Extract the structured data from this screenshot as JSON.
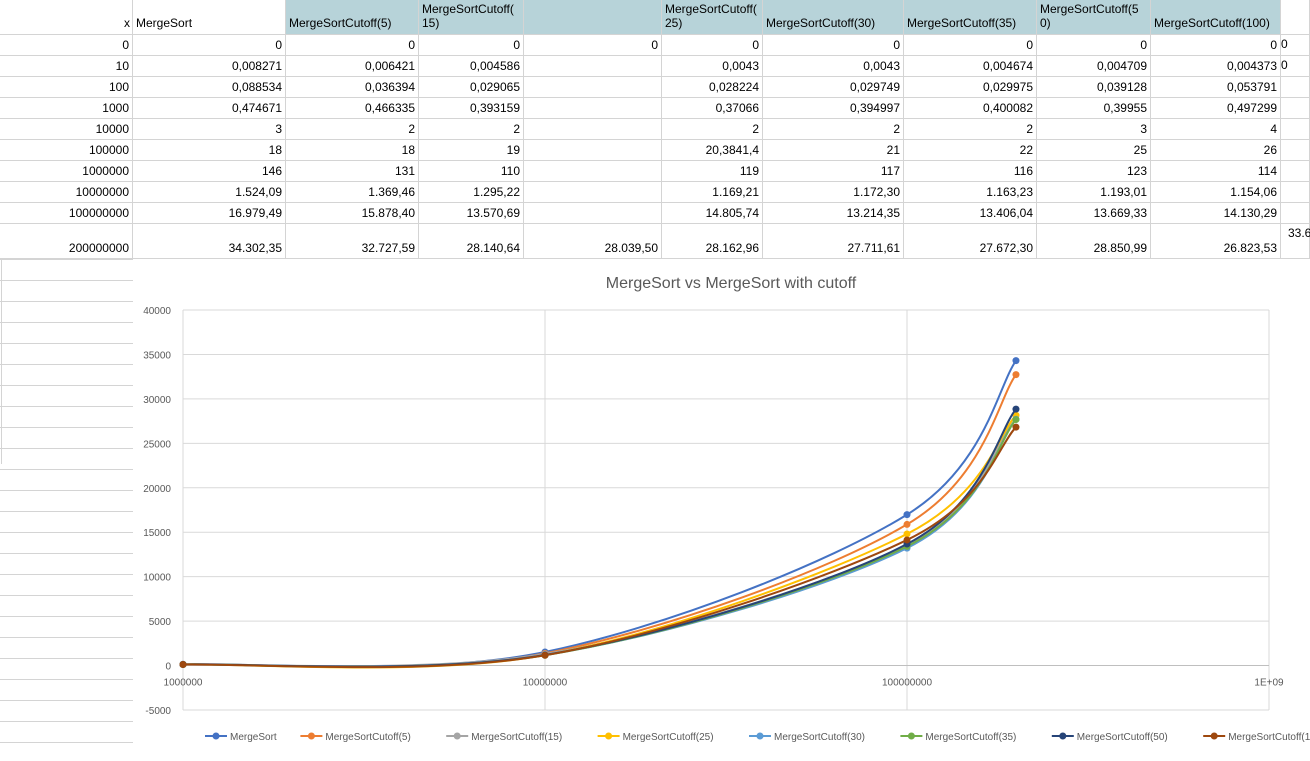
{
  "sheet": {
    "headers": [
      "x",
      "MergeSort",
      "MergeSortCutoff(5)",
      "MergeSortCutoff(\n15)",
      "",
      "MergeSortCutoff(\n25)",
      "MergeSortCutoff(30)",
      "MergeSortCutoff(35)",
      "MergeSortCutoff(5\n0)",
      "MergeSortCutoff(100)"
    ],
    "rows": [
      [
        "0",
        "0",
        "0",
        "0",
        "0",
        "0",
        "0",
        "0",
        "0",
        "0"
      ],
      [
        "10",
        "0,008271",
        "0,006421",
        "0,004586",
        "",
        "0,0043",
        "0,0043",
        "0,004674",
        "0,004709",
        "0,004373"
      ],
      [
        "100",
        "0,088534",
        "0,036394",
        "0,029065",
        "",
        "0,028224",
        "0,029749",
        "0,029975",
        "0,039128",
        "0,053791"
      ],
      [
        "1000",
        "0,474671",
        "0,466335",
        "0,393159",
        "",
        "0,37066",
        "0,394997",
        "0,400082",
        "0,39955",
        "0,497299"
      ],
      [
        "10000",
        "3",
        "2",
        "2",
        "",
        "2",
        "2",
        "2",
        "3",
        "4"
      ],
      [
        "100000",
        "18",
        "18",
        "19",
        "",
        "20,3841,4",
        "21",
        "22",
        "25",
        "26"
      ],
      [
        "1000000",
        "146",
        "131",
        "110",
        "",
        "119",
        "117",
        "116",
        "123",
        "114"
      ],
      [
        "10000000",
        "1.524,09",
        "1.369,46",
        "1.295,22",
        "",
        "1.169,21",
        "1.172,30",
        "1.163,23",
        "1.193,01",
        "1.154,06"
      ],
      [
        "100000000",
        "16.979,49",
        "15.878,40",
        "13.570,69",
        "",
        "14.805,74",
        "13.214,35",
        "13.406,04",
        "13.669,33",
        "14.130,29"
      ],
      [
        "200000000",
        "34.302,35",
        "32.727,59",
        "28.140,64",
        "28.039,50",
        "28.162,96",
        "27.711,61",
        "27.672,30",
        "28.850,99",
        "26.823,53"
      ]
    ],
    "overflow_texts": [
      "0",
      "0",
      "33.6"
    ]
  },
  "chart_data": {
    "type": "line",
    "title": "MergeSort vs MergeSort with cutoff",
    "xscale": "log",
    "x_ticks": [
      "1000000",
      "10000000",
      "100000000",
      "1E+09"
    ],
    "y_ticks": [
      "40000",
      "35000",
      "30000",
      "25000",
      "20000",
      "15000",
      "10000",
      "5000",
      "0",
      "-5000"
    ],
    "ylim": [
      -5000,
      40000
    ],
    "xlim": [
      1000000,
      1000000000
    ],
    "grid": true,
    "legend_position": "bottom",
    "x": [
      1000000,
      10000000,
      100000000,
      200000000
    ],
    "series": [
      {
        "name": "MergeSort",
        "color": "#4472c4",
        "values": [
          146,
          1524.09,
          16979.49,
          34302.35
        ]
      },
      {
        "name": "MergeSortCutoff(5)",
        "color": "#ed7d31",
        "values": [
          131,
          1369.46,
          15878.4,
          32727.59
        ]
      },
      {
        "name": "MergeSortCutoff(15)",
        "color": "#a5a5a5",
        "values": [
          110,
          1295.22,
          13570.69,
          28140.64
        ]
      },
      {
        "name": "MergeSortCutoff(25)",
        "color": "#ffc000",
        "values": [
          119,
          1169.21,
          14805.74,
          28162.96
        ]
      },
      {
        "name": "MergeSortCutoff(30)",
        "color": "#5b9bd5",
        "values": [
          117,
          1172.3,
          13214.35,
          27711.61
        ]
      },
      {
        "name": "MergeSortCutoff(35)",
        "color": "#70ad47",
        "values": [
          116,
          1163.23,
          13406.04,
          27672.3
        ]
      },
      {
        "name": "MergeSortCutoff(50)",
        "color": "#264478",
        "values": [
          123,
          1193.01,
          13669.33,
          28850.99
        ]
      },
      {
        "name": "MergeSortCutoff(100)",
        "color": "#9e480e",
        "values": [
          114,
          1154.06,
          14130.29,
          26823.53
        ]
      }
    ]
  }
}
